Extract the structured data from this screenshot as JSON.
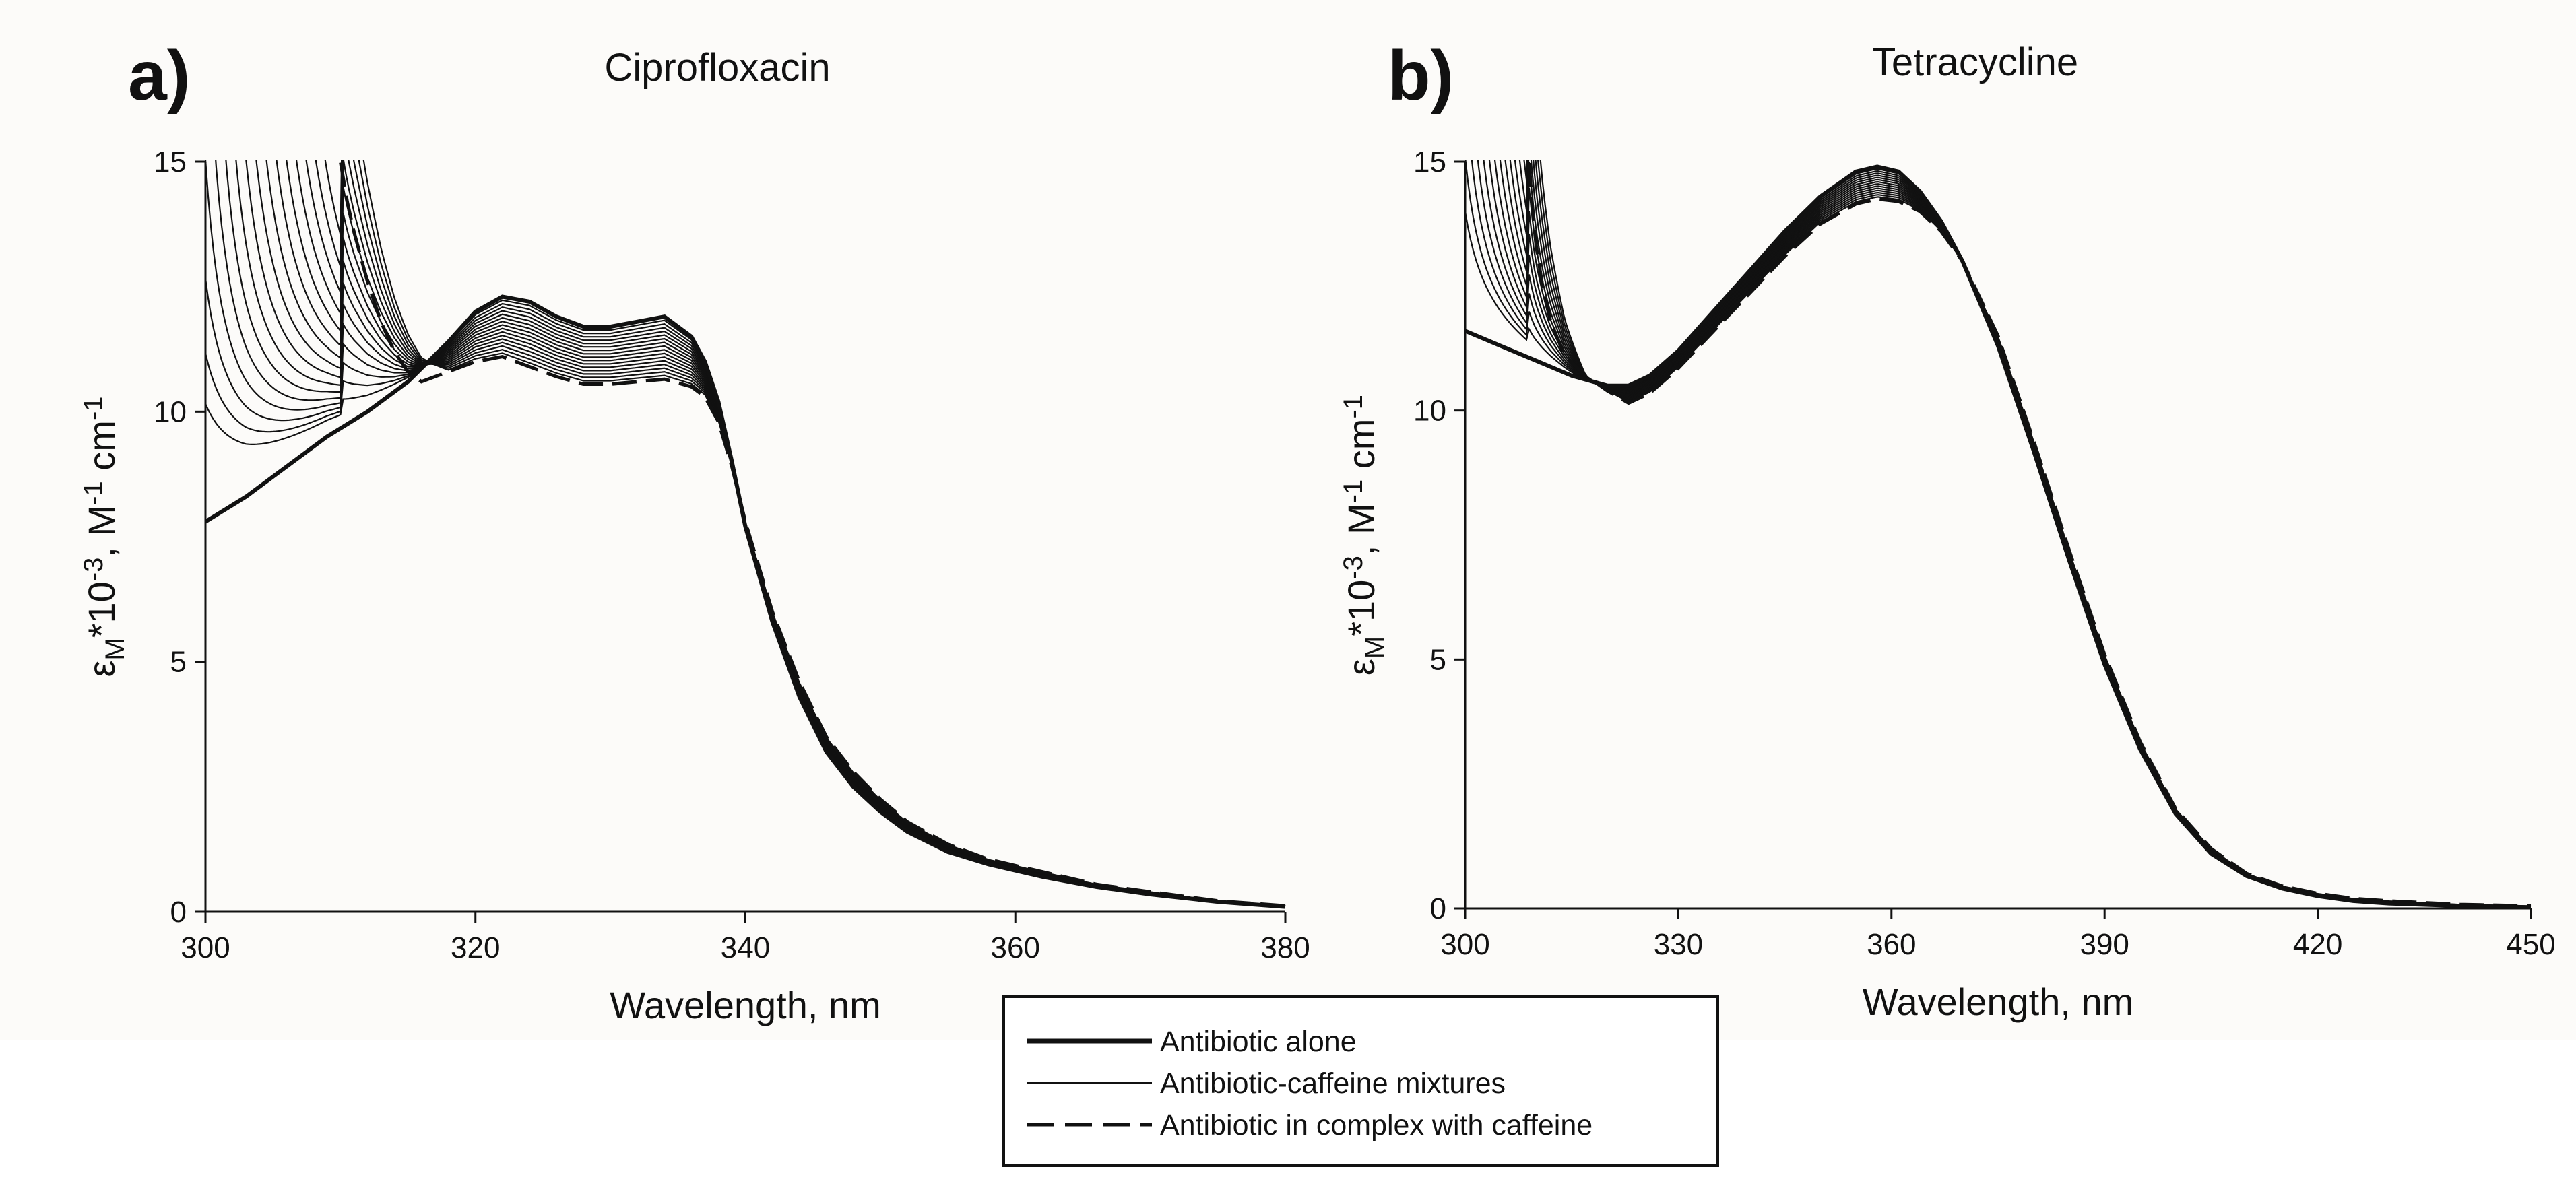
{
  "figure": {
    "background": "#fcfbf9",
    "line_color": "#111111",
    "legend": {
      "items": [
        {
          "label": "Antibiotic alone",
          "style": "thick"
        },
        {
          "label": "Antibiotic-caffeine mixtures",
          "style": "thin"
        },
        {
          "label": "Antibiotic in complex with caffeine",
          "style": "dashed"
        }
      ]
    }
  },
  "chart_data": [
    {
      "type": "line",
      "panel_label": "a)",
      "title": "Ciprofloxacin",
      "xlabel": "Wavelength, nm",
      "ylabel": "εM*10-3, M-1 cm-1",
      "ylabel_parts": {
        "sym": "ε",
        "sub": "M",
        "mid": "*10",
        "sup1": "-3",
        "mid2": ", M",
        "sup2": "-1",
        "end": " cm",
        "sup3": "-1"
      },
      "xlim": [
        300,
        380
      ],
      "ylim": [
        0,
        15
      ],
      "xticks": [
        300,
        320,
        340,
        360,
        380
      ],
      "yticks": [
        0,
        5,
        10,
        15
      ],
      "n_mixtures": 16,
      "series": [
        {
          "name": "Antibiotic alone",
          "style": "thick",
          "x": [
            300,
            303,
            306,
            309,
            312,
            315,
            318,
            320,
            322,
            324,
            326,
            328,
            330,
            332,
            334,
            336,
            337,
            338,
            339,
            340,
            342,
            344,
            346,
            348,
            350,
            352,
            355,
            358,
            362,
            366,
            370,
            375,
            380
          ],
          "y": [
            7.8,
            8.3,
            8.9,
            9.5,
            10.0,
            10.6,
            11.4,
            12.0,
            12.3,
            12.2,
            11.9,
            11.7,
            11.7,
            11.8,
            11.9,
            11.5,
            11.0,
            10.2,
            9.0,
            7.7,
            5.8,
            4.3,
            3.2,
            2.5,
            2.0,
            1.6,
            1.2,
            0.95,
            0.7,
            0.5,
            0.35,
            0.2,
            0.1
          ]
        },
        {
          "name": "Antibiotic in complex with caffeine",
          "style": "dashed",
          "x": [
            310,
            310.5,
            311,
            312,
            313,
            314,
            315,
            316,
            318,
            320,
            322,
            324,
            326,
            328,
            330,
            332,
            334,
            336,
            337,
            338,
            339,
            340,
            342,
            344,
            346,
            348,
            350,
            352,
            355,
            358,
            362,
            366,
            370,
            375,
            380
          ],
          "y": [
            15.0,
            14.2,
            13.6,
            12.6,
            11.8,
            11.2,
            10.8,
            10.6,
            10.8,
            11.0,
            11.1,
            10.9,
            10.7,
            10.55,
            10.55,
            10.6,
            10.65,
            10.5,
            10.3,
            9.8,
            8.9,
            7.8,
            6.0,
            4.6,
            3.5,
            2.8,
            2.25,
            1.8,
            1.35,
            1.05,
            0.8,
            0.55,
            0.4,
            0.22,
            0.12
          ]
        }
      ]
    },
    {
      "type": "line",
      "panel_label": "b)",
      "title": "Tetracycline",
      "xlabel": "Wavelength, nm",
      "ylabel": "εM*10-3, M-1 cm-1",
      "ylabel_parts": {
        "sym": "ε",
        "sub": "M",
        "mid": "*10",
        "sup1": "-3",
        "mid2": ", M",
        "sup2": "-1",
        "end": " cm",
        "sup3": "-1"
      },
      "xlim": [
        300,
        450
      ],
      "ylim": [
        0,
        15
      ],
      "xticks": [
        300,
        330,
        360,
        390,
        420,
        450
      ],
      "yticks": [
        0,
        5,
        10,
        15
      ],
      "n_mixtures": 14,
      "series": [
        {
          "name": "Antibiotic alone",
          "style": "thick",
          "x": [
            300,
            305,
            310,
            315,
            320,
            323,
            326,
            330,
            335,
            340,
            345,
            350,
            355,
            358,
            361,
            364,
            367,
            370,
            375,
            380,
            385,
            390,
            395,
            400,
            405,
            410,
            415,
            420,
            425,
            430,
            440,
            450
          ],
          "y": [
            11.6,
            11.3,
            11.0,
            10.7,
            10.5,
            10.5,
            10.7,
            11.2,
            12.0,
            12.8,
            13.6,
            14.3,
            14.8,
            14.9,
            14.8,
            14.4,
            13.8,
            13.0,
            11.3,
            9.2,
            7.0,
            4.9,
            3.2,
            1.9,
            1.1,
            0.65,
            0.4,
            0.25,
            0.15,
            0.1,
            0.05,
            0.02
          ]
        },
        {
          "name": "Antibiotic in complex with caffeine",
          "style": "dashed",
          "x": [
            309,
            309.5,
            310,
            311,
            312,
            314,
            317,
            320,
            323,
            326,
            330,
            335,
            340,
            345,
            350,
            355,
            358,
            361,
            364,
            367,
            370,
            375,
            380,
            385,
            390,
            395,
            400,
            405,
            410,
            415,
            420,
            425,
            430,
            440,
            450
          ],
          "y": [
            15.0,
            14.0,
            13.3,
            12.4,
            11.8,
            11.1,
            10.7,
            10.4,
            10.15,
            10.35,
            10.85,
            11.6,
            12.35,
            13.1,
            13.75,
            14.15,
            14.25,
            14.2,
            14.0,
            13.6,
            13.0,
            11.5,
            9.4,
            7.2,
            5.1,
            3.35,
            2.0,
            1.2,
            0.7,
            0.45,
            0.3,
            0.2,
            0.15,
            0.08,
            0.05
          ]
        }
      ]
    }
  ]
}
